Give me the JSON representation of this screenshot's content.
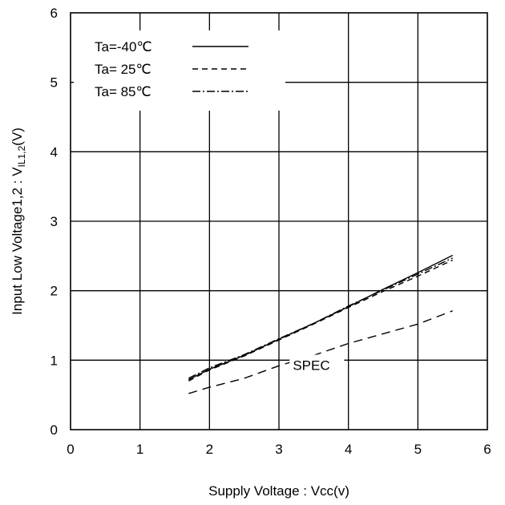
{
  "chart_data": {
    "type": "line",
    "title": "",
    "xlabel": "Supply Voltage : Vcc(v)",
    "ylabel": {
      "prefix": "Input Low Voltage1,2 : V",
      "subscript": "IL1,2",
      "suffix": "(V)"
    },
    "xlim": [
      0,
      6
    ],
    "ylim": [
      0,
      6
    ],
    "xticks": [
      "0",
      "1",
      "2",
      "3",
      "4",
      "5",
      "6"
    ],
    "yticks": [
      "0",
      "1",
      "2",
      "3",
      "4",
      "5",
      "6"
    ],
    "grid": true,
    "legend_position": "top-left",
    "series": [
      {
        "name": "Ta=-40℃",
        "style": "solid",
        "x": [
          1.7,
          2.0,
          2.5,
          3.0,
          3.5,
          4.0,
          4.5,
          5.0,
          5.5
        ],
        "y": [
          0.72,
          0.87,
          1.07,
          1.3,
          1.53,
          1.77,
          2.02,
          2.26,
          2.51
        ]
      },
      {
        "name": "Ta= 25℃",
        "style": "dashed",
        "x": [
          1.7,
          2.0,
          2.5,
          3.0,
          3.5,
          4.0,
          4.5,
          5.0,
          5.5
        ],
        "y": [
          0.7,
          0.86,
          1.06,
          1.29,
          1.52,
          1.76,
          1.99,
          2.21,
          2.44
        ]
      },
      {
        "name": "Ta= 85℃",
        "style": "dashdot",
        "x": [
          1.7,
          2.0,
          2.5,
          3.0,
          3.5,
          4.0,
          4.5,
          5.0,
          5.5
        ],
        "y": [
          0.74,
          0.89,
          1.08,
          1.31,
          1.53,
          1.78,
          2.01,
          2.24,
          2.47
        ]
      },
      {
        "name": "SPEC",
        "style": "longdash",
        "x": [
          1.7,
          2.0,
          2.5,
          3.0,
          3.5,
          4.0,
          4.5,
          5.0,
          5.5
        ],
        "y": [
          0.52,
          0.61,
          0.74,
          0.92,
          1.07,
          1.24,
          1.38,
          1.52,
          1.71
        ]
      }
    ],
    "annotations": [
      {
        "text": "SPEC",
        "x": 3.2,
        "y": 0.86
      }
    ]
  }
}
